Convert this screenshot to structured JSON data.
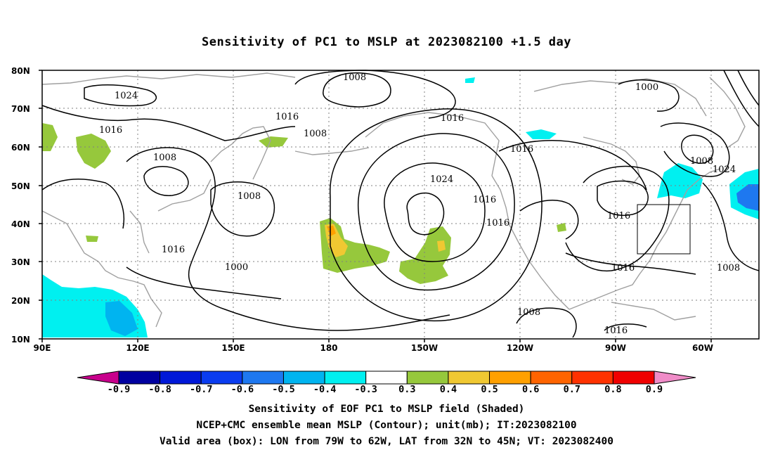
{
  "title": "Sensitivity of PC1 to MSLP at 2023082100 +1.5 day",
  "map": {
    "lat_labels": [
      "80N",
      "70N",
      "60N",
      "50N",
      "40N",
      "30N",
      "20N",
      "10N"
    ],
    "lon_labels": [
      "90E",
      "120E",
      "150E",
      "180",
      "150W",
      "120W",
      "90W",
      "60W"
    ],
    "contour_labels": [
      "1008",
      "1024",
      "1016",
      "1016",
      "1008",
      "1016",
      "1008",
      "1016",
      "1008",
      "1016",
      "1024",
      "1016",
      "1016",
      "1000",
      "1000",
      "1008",
      "1024",
      "1016",
      "1016",
      "1008",
      "1008",
      "1016"
    ],
    "valid_box": {
      "lon_from": "79W",
      "lon_to": "62W",
      "lat_from": "32N",
      "lat_to": "45N"
    }
  },
  "colorbar": {
    "ticks": [
      "-0.9",
      "-0.8",
      "-0.7",
      "-0.6",
      "-0.5",
      "-0.4",
      "-0.3",
      "0.3",
      "0.4",
      "0.5",
      "0.6",
      "0.7",
      "0.8",
      "0.9"
    ],
    "colors": [
      "#c8008c",
      "#0000a0",
      "#0018d8",
      "#0a3cf0",
      "#1e78f0",
      "#00b4f0",
      "#00f0f0",
      "#ffffff",
      "#96c83c",
      "#f0c832",
      "#ffa000",
      "#ff6400",
      "#ff3200",
      "#f00000",
      "#f08cc8"
    ]
  },
  "caption": {
    "line1": "Sensitivity of EOF PC1 to MSLP field (Shaded)",
    "line2": "NCEP+CMC ensemble mean MSLP (Contour); unit(mb); IT:2023082100",
    "line3": "Valid area (box): LON from 79W to 62W, LAT from 32N to 45N; VT: 2023082400"
  }
}
